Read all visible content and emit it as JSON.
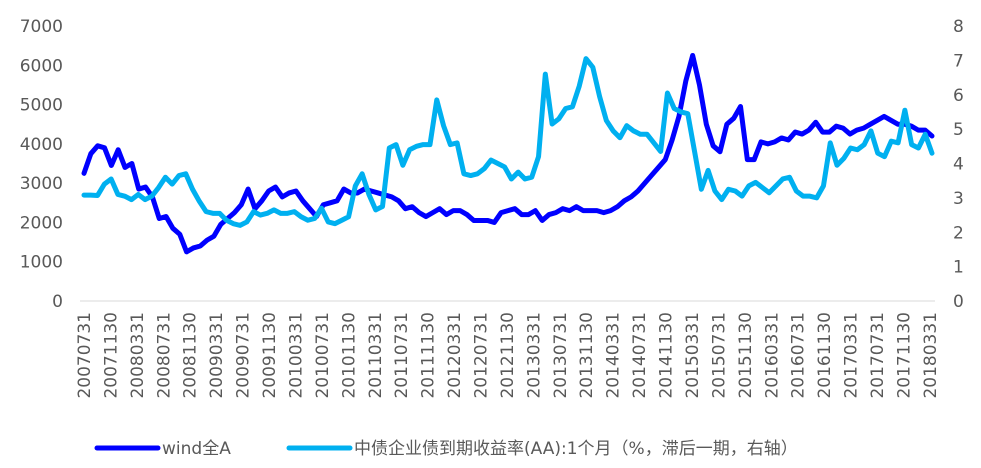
{
  "chart_data": {
    "type": "line",
    "x_ticks": [
      "20070731",
      "20071130",
      "20080331",
      "20080731",
      "20081130",
      "20090331",
      "20090731",
      "20091130",
      "20100331",
      "20100731",
      "20101130",
      "20110331",
      "20110731",
      "20111130",
      "20120331",
      "20120731",
      "20121130",
      "20130331",
      "20130731",
      "20131130",
      "20140331",
      "20140731",
      "20141130",
      "20150331",
      "20150731",
      "20151130",
      "20160331",
      "20160731",
      "20161130",
      "20170331",
      "20170731",
      "20171130",
      "20180331"
    ],
    "y_left": {
      "ylim": [
        0,
        7000
      ],
      "ticks": [
        "0",
        "1000",
        "2000",
        "3000",
        "4000",
        "5000",
        "6000",
        "7000"
      ]
    },
    "y_right": {
      "ylim": [
        0,
        8
      ],
      "ticks": [
        "0",
        "1",
        "2",
        "3",
        "4",
        "5",
        "6",
        "7",
        "8"
      ]
    },
    "grid": false,
    "legend_position": "bottom",
    "series": [
      {
        "name": "wind全A",
        "axis": "left",
        "color": "#0000FF",
        "values": [
          3250,
          3750,
          3950,
          3900,
          3450,
          3850,
          3400,
          3500,
          2850,
          2900,
          2650,
          2100,
          2150,
          1850,
          1700,
          1250,
          1350,
          1400,
          1550,
          1650,
          1950,
          2100,
          2250,
          2450,
          2850,
          2350,
          2550,
          2800,
          2900,
          2650,
          2750,
          2800,
          2550,
          2350,
          2150,
          2450,
          2500,
          2550,
          2850,
          2750,
          2750,
          2850,
          2800,
          2750,
          2700,
          2650,
          2550,
          2350,
          2400,
          2250,
          2150,
          2250,
          2350,
          2200,
          2300,
          2300,
          2200,
          2050,
          2050,
          2050,
          2000,
          2250,
          2300,
          2350,
          2200,
          2200,
          2300,
          2050,
          2200,
          2250,
          2350,
          2300,
          2400,
          2300,
          2300,
          2300,
          2250,
          2300,
          2400,
          2550,
          2650,
          2800,
          3000,
          3200,
          3400,
          3600,
          4100,
          4700,
          5600,
          6250,
          5500,
          4500,
          3950,
          3800,
          4500,
          4650,
          4950,
          3600,
          3600,
          4050,
          4000,
          4050,
          4150,
          4100,
          4300,
          4250,
          4350,
          4550,
          4300,
          4300,
          4450,
          4400,
          4250,
          4350,
          4400,
          4500,
          4600,
          4700,
          4600,
          4500,
          4500,
          4450,
          4350,
          4350,
          4200
        ]
      },
      {
        "name": "中债企业债到期收益率(AA):1个月（%，滞后一期，右轴）",
        "axis": "right",
        "color": "#00B0F0",
        "values": [
          3.08,
          3.08,
          3.07,
          3.4,
          3.55,
          3.1,
          3.05,
          2.95,
          3.1,
          2.95,
          3.05,
          3.3,
          3.6,
          3.4,
          3.65,
          3.7,
          3.25,
          2.9,
          2.6,
          2.55,
          2.55,
          2.35,
          2.25,
          2.2,
          2.3,
          2.6,
          2.5,
          2.55,
          2.65,
          2.55,
          2.55,
          2.6,
          2.45,
          2.35,
          2.4,
          2.7,
          2.3,
          2.25,
          2.35,
          2.45,
          3.35,
          3.7,
          3.1,
          2.65,
          2.75,
          4.45,
          4.55,
          3.95,
          4.4,
          4.5,
          4.55,
          4.55,
          5.85,
          5.1,
          4.55,
          4.6,
          3.7,
          3.65,
          3.7,
          3.85,
          4.1,
          4.0,
          3.9,
          3.55,
          3.75,
          3.55,
          3.6,
          4.2,
          6.6,
          5.15,
          5.3,
          5.6,
          5.65,
          6.25,
          7.05,
          6.8,
          5.95,
          5.25,
          4.95,
          4.75,
          5.1,
          4.95,
          4.85,
          4.85,
          4.6,
          4.35,
          6.05,
          5.6,
          5.5,
          5.45,
          4.35,
          3.25,
          3.8,
          3.2,
          2.95,
          3.25,
          3.2,
          3.05,
          3.35,
          3.45,
          3.3,
          3.15,
          3.35,
          3.55,
          3.6,
          3.2,
          3.05,
          3.05,
          3.0,
          3.35,
          4.6,
          3.95,
          4.15,
          4.45,
          4.4,
          4.55,
          4.95,
          4.3,
          4.2,
          4.65,
          4.6,
          5.55,
          4.55,
          4.45,
          4.85,
          4.3
        ]
      }
    ]
  },
  "legend": {
    "items": [
      {
        "label": "wind全A",
        "color": "#0000FF"
      },
      {
        "label": "中债企业债到期收益率(AA):1个月（%，滞后一期，右轴）",
        "color": "#00B0F0"
      }
    ]
  }
}
